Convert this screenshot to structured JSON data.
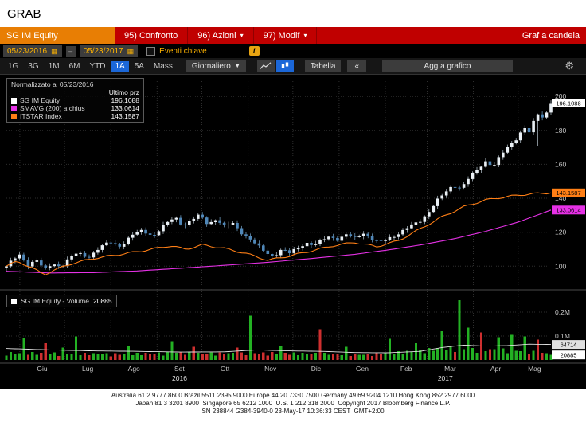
{
  "grab": {
    "label": "GRAB"
  },
  "title_bar": {
    "security": "SG IM Equity",
    "confronto": "95) Confronto",
    "azioni": "96) Azioni",
    "modif": "97) Modif",
    "chart_type": "Graf a candela"
  },
  "controls": {
    "date_from": "05/23/2016",
    "date_to": "05/23/2017",
    "eventi": "Eventi chiave",
    "info": "i"
  },
  "toolbar": {
    "periods": [
      "1G",
      "3G",
      "1M",
      "6M",
      "YTD",
      "1A",
      "5A",
      "Mass"
    ],
    "selected_period": "1A",
    "freq": "Giornaliero",
    "tabella": "Tabella",
    "collapse": "«",
    "agg": "Agg a grafico"
  },
  "chart_data": {
    "type": "candlestick",
    "normalized_label": "Normalizzato al 05/23/2016",
    "last_price_header": "Ultimo prz",
    "series": [
      {
        "name": "SG IM Equity",
        "last": "196.1088",
        "color": "#ffffff",
        "kind": "candle"
      },
      {
        "name": "SMAVG (200) a chius",
        "last": "133.0614",
        "color": "#e631e6",
        "kind": "line"
      },
      {
        "name": "ITSTAR Index",
        "last": "143.1587",
        "color": "#ff7f16",
        "kind": "line"
      }
    ],
    "ylim": [
      87,
      209
    ],
    "y_ticks": [
      100,
      120,
      140,
      160,
      180,
      200
    ],
    "x_months": [
      "Giu",
      "Lug",
      "Ago",
      "Set",
      "Ott",
      "Nov",
      "Dic",
      "Gen",
      "Feb",
      "Mar",
      "Apr",
      "Mag"
    ],
    "x_years": [
      "2016",
      "2017"
    ],
    "equity_anchors": [
      [
        0,
        100
      ],
      [
        0.012,
        103.5
      ],
      [
        0.025,
        106.5
      ],
      [
        0.04,
        101
      ],
      [
        0.055,
        104
      ],
      [
        0.07,
        97.5
      ],
      [
        0.085,
        101.5
      ],
      [
        0.1,
        100
      ],
      [
        0.115,
        104.5
      ],
      [
        0.13,
        107.5
      ],
      [
        0.15,
        105.5
      ],
      [
        0.17,
        110.5
      ],
      [
        0.19,
        114
      ],
      [
        0.21,
        112
      ],
      [
        0.23,
        118
      ],
      [
        0.25,
        121
      ],
      [
        0.27,
        118
      ],
      [
        0.29,
        124
      ],
      [
        0.31,
        129
      ],
      [
        0.325,
        124
      ],
      [
        0.34,
        127
      ],
      [
        0.355,
        130
      ],
      [
        0.37,
        125
      ],
      [
        0.385,
        128
      ],
      [
        0.4,
        123
      ],
      [
        0.415,
        125.5
      ],
      [
        0.43,
        120.5
      ],
      [
        0.445,
        116.5
      ],
      [
        0.46,
        112
      ],
      [
        0.475,
        108.5
      ],
      [
        0.49,
        106
      ],
      [
        0.505,
        109.5
      ],
      [
        0.52,
        107.5
      ],
      [
        0.535,
        111
      ],
      [
        0.55,
        114
      ],
      [
        0.565,
        112
      ],
      [
        0.58,
        115.5
      ],
      [
        0.595,
        118
      ],
      [
        0.61,
        115.5
      ],
      [
        0.625,
        118.5
      ],
      [
        0.64,
        116.5
      ],
      [
        0.655,
        120
      ],
      [
        0.67,
        116
      ],
      [
        0.685,
        113.5
      ],
      [
        0.7,
        116.5
      ],
      [
        0.715,
        118.5
      ],
      [
        0.73,
        121
      ],
      [
        0.745,
        124
      ],
      [
        0.76,
        127
      ],
      [
        0.775,
        132
      ],
      [
        0.79,
        138
      ],
      [
        0.805,
        143
      ],
      [
        0.82,
        148
      ],
      [
        0.835,
        146
      ],
      [
        0.85,
        152
      ],
      [
        0.865,
        157
      ],
      [
        0.88,
        162
      ],
      [
        0.895,
        159
      ],
      [
        0.91,
        166
      ],
      [
        0.925,
        172
      ],
      [
        0.94,
        176.5
      ],
      [
        0.95,
        182
      ],
      [
        0.96,
        178.5
      ],
      [
        0.97,
        186
      ],
      [
        0.978,
        191
      ],
      [
        0.986,
        187
      ],
      [
        1,
        196.1088
      ]
    ],
    "long_lower_wick": {
      "t": 0.975,
      "low": 171
    },
    "sma_anchors": [
      [
        0,
        97
      ],
      [
        0.08,
        96
      ],
      [
        0.16,
        96.2
      ],
      [
        0.24,
        97.2
      ],
      [
        0.32,
        98.8
      ],
      [
        0.4,
        100.5
      ],
      [
        0.48,
        102.3
      ],
      [
        0.56,
        104.5
      ],
      [
        0.64,
        107
      ],
      [
        0.7,
        109.5
      ],
      [
        0.76,
        112.5
      ],
      [
        0.82,
        116
      ],
      [
        0.88,
        120.5
      ],
      [
        0.94,
        126
      ],
      [
        1,
        133.0614
      ]
    ],
    "index_anchors": [
      [
        0,
        100
      ],
      [
        0.02,
        103
      ],
      [
        0.05,
        98.5
      ],
      [
        0.07,
        95
      ],
      [
        0.09,
        98
      ],
      [
        0.12,
        101.5
      ],
      [
        0.16,
        104.5
      ],
      [
        0.2,
        106.5
      ],
      [
        0.25,
        109
      ],
      [
        0.3,
        112
      ],
      [
        0.33,
        110
      ],
      [
        0.36,
        112.5
      ],
      [
        0.4,
        110.5
      ],
      [
        0.44,
        107.5
      ],
      [
        0.48,
        103.5
      ],
      [
        0.52,
        106
      ],
      [
        0.56,
        109
      ],
      [
        0.6,
        112
      ],
      [
        0.64,
        114
      ],
      [
        0.68,
        111.5
      ],
      [
        0.72,
        115
      ],
      [
        0.76,
        122
      ],
      [
        0.8,
        129
      ],
      [
        0.84,
        135
      ],
      [
        0.88,
        139
      ],
      [
        0.92,
        141
      ],
      [
        0.96,
        142.5
      ],
      [
        1,
        143.1587
      ]
    ],
    "volume": {
      "name": "SG IM Equity - Volume",
      "last": 20885,
      "avg_last": 64714,
      "y_ticks": [
        {
          "label": "0.2M",
          "value": 200000
        },
        {
          "label": "0.1M",
          "value": 100000
        }
      ],
      "base_anchors": [
        [
          0,
          26000
        ],
        [
          0.1,
          24000
        ],
        [
          0.2,
          22000
        ],
        [
          0.3,
          26000
        ],
        [
          0.4,
          24000
        ],
        [
          0.5,
          26000
        ],
        [
          0.6,
          22000
        ],
        [
          0.65,
          20000
        ],
        [
          0.7,
          26000
        ],
        [
          0.75,
          32000
        ],
        [
          0.8,
          45000
        ],
        [
          0.85,
          40000
        ],
        [
          0.9,
          38000
        ],
        [
          0.95,
          34000
        ],
        [
          1,
          22000
        ]
      ],
      "avg_anchors": [
        [
          0,
          48000
        ],
        [
          0.08,
          42000
        ],
        [
          0.16,
          38000
        ],
        [
          0.24,
          36000
        ],
        [
          0.32,
          33000
        ],
        [
          0.4,
          34000
        ],
        [
          0.46,
          42000
        ],
        [
          0.52,
          38000
        ],
        [
          0.58,
          36000
        ],
        [
          0.64,
          31000
        ],
        [
          0.7,
          30000
        ],
        [
          0.76,
          36000
        ],
        [
          0.8,
          52000
        ],
        [
          0.84,
          62000
        ],
        [
          0.88,
          58000
        ],
        [
          0.92,
          60000
        ],
        [
          0.96,
          66000
        ],
        [
          1,
          64714
        ]
      ],
      "spikes": [
        {
          "t": 0.03,
          "v": 90000,
          "c": "g"
        },
        {
          "t": 0.07,
          "v": 70000,
          "c": "r"
        },
        {
          "t": 0.105,
          "v": 52000,
          "c": "g"
        },
        {
          "t": 0.13,
          "v": 98000,
          "c": "g"
        },
        {
          "t": 0.22,
          "v": 60000,
          "c": "g"
        },
        {
          "t": 0.3,
          "v": 78000,
          "c": "g"
        },
        {
          "t": 0.345,
          "v": 55000,
          "c": "r"
        },
        {
          "t": 0.42,
          "v": 52000,
          "c": "r"
        },
        {
          "t": 0.45,
          "v": 185000,
          "c": "g"
        },
        {
          "t": 0.5,
          "v": 60000,
          "c": "g"
        },
        {
          "t": 0.573,
          "v": 128000,
          "c": "r"
        },
        {
          "t": 0.62,
          "v": 55000,
          "c": "g"
        },
        {
          "t": 0.7,
          "v": 88000,
          "c": "g"
        },
        {
          "t": 0.755,
          "v": 70000,
          "c": "g"
        },
        {
          "t": 0.8,
          "v": 120000,
          "c": "g"
        },
        {
          "t": 0.829,
          "v": 250000,
          "c": "g"
        },
        {
          "t": 0.845,
          "v": 135000,
          "c": "g"
        },
        {
          "t": 0.87,
          "v": 115000,
          "c": "r"
        },
        {
          "t": 0.9,
          "v": 95000,
          "c": "g"
        },
        {
          "t": 0.925,
          "v": 105000,
          "c": "g"
        },
        {
          "t": 0.955,
          "v": 98000,
          "c": "g"
        },
        {
          "t": 0.975,
          "v": 85000,
          "c": "r"
        }
      ],
      "up_color": "#23b123",
      "down_color": "#cf2f2f"
    },
    "candle_up_color": "#e9eff4",
    "candle_down_color": "#4f87b8"
  },
  "footer": {
    "line1": "Australia 61 2 9777 8600 Brazil 5511 2395 9000 Europe 44 20 7330 7500 Germany 49 69 9204 1210 Hong Kong 852 2977 6000",
    "line2": "Japan 81 3 3201 8900  Singapore 65 6212 1000  U.S. 1 212 318 2000  Copyright 2017 Bloomberg Finance L.P.",
    "line3": "SN 238844 G384-3940-0 23-May-17 10:36:33 CEST  GMT+2:00"
  }
}
